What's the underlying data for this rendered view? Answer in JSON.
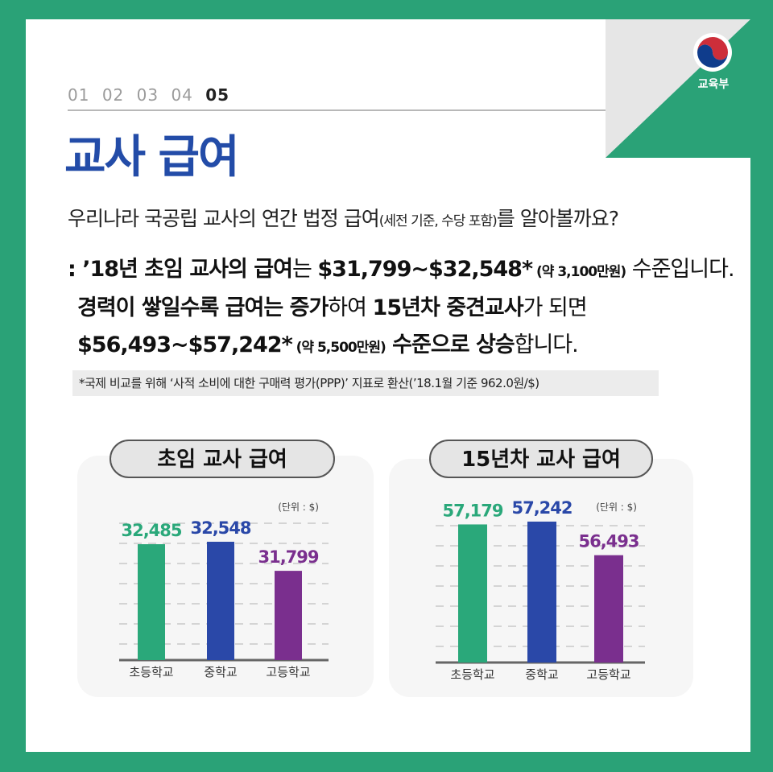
{
  "logo": {
    "label": "교육부"
  },
  "steps": [
    "01",
    "02",
    "03",
    "04",
    "05"
  ],
  "title": "교사 급여",
  "intro": {
    "main": "우리나라 국공립 교사의 연간 법정 급여",
    "paren": "(세전 기준, 수당 포함)",
    "tail": "를 알아볼까요?"
  },
  "body": {
    "l1_a": ": ’18년 초임 교사의 급여",
    "l1_b": "는 ",
    "l1_c": "$31,799~$32,548*",
    "l1_d": " (약 3,100만원)",
    "l1_e": " 수준입니다.",
    "l2_a": "경력이 쌓일수록 급여는 증가",
    "l2_b": "하여 ",
    "l2_c": "15년차 중견교사",
    "l2_d": "가 되면",
    "l3_a": "$56,493~$57,242*",
    "l3_b": " (약 5,500만원)",
    "l3_c": " 수준으로 상승",
    "l3_d": "합니다."
  },
  "note": "*국제 비교를 위해 ‘사적 소비에 대한 구매력 평가(PPP)’ 지표로 환산(’18.1월 기준 962.0원/$)",
  "colors": {
    "elementary": "#2aa87a",
    "middle": "#2a48a8",
    "high": "#7a2f8e"
  },
  "chart_data": [
    {
      "type": "bar",
      "title": "초임 교사 급여",
      "unit": "(단위 : $)",
      "categories": [
        "초등학교",
        "중학교",
        "고등학교"
      ],
      "values": [
        32485,
        32548,
        31799
      ],
      "value_labels": [
        "32,485",
        "32,548",
        "31,799"
      ],
      "ylim": [
        29500,
        32900
      ]
    },
    {
      "type": "bar",
      "title": "15년차 교사 급여",
      "unit": "(단위 : $)",
      "categories": [
        "초등학교",
        "중학교",
        "고등학교"
      ],
      "values": [
        57179,
        57242,
        56493
      ],
      "value_labels": [
        "57,179",
        "57,242",
        "56,493"
      ],
      "ylim": [
        54100,
        57600
      ]
    }
  ]
}
